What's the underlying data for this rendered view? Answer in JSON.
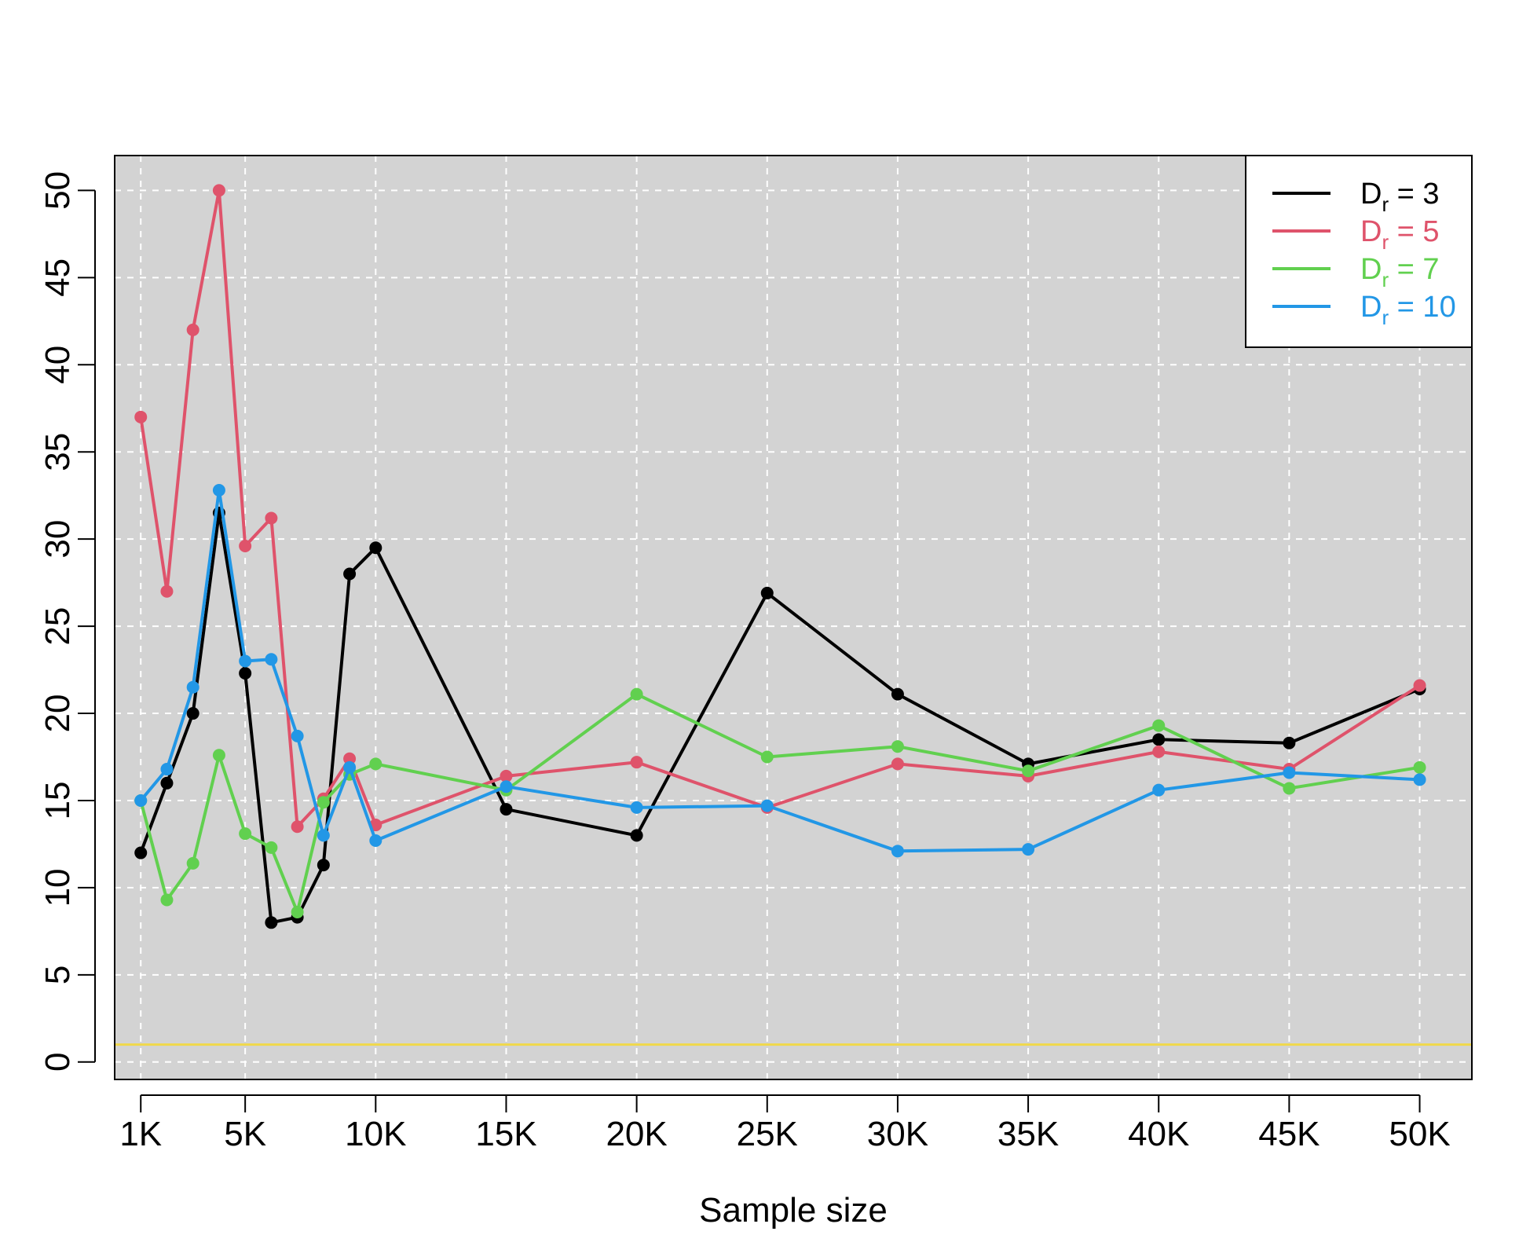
{
  "chart_data": {
    "type": "line",
    "title": "",
    "xlabel": "Sample size",
    "ylabel": "",
    "xlim": [
      0,
      52000
    ],
    "ylim": [
      -1,
      52
    ],
    "x_ticks": [
      {
        "value": 1000,
        "label": "1K"
      },
      {
        "value": 5000,
        "label": "5K"
      },
      {
        "value": 10000,
        "label": "10K"
      },
      {
        "value": 15000,
        "label": "15K"
      },
      {
        "value": 20000,
        "label": "20K"
      },
      {
        "value": 25000,
        "label": "25K"
      },
      {
        "value": 30000,
        "label": "30K"
      },
      {
        "value": 35000,
        "label": "35K"
      },
      {
        "value": 40000,
        "label": "40K"
      },
      {
        "value": 45000,
        "label": "45K"
      },
      {
        "value": 50000,
        "label": "50K"
      }
    ],
    "y_ticks": [
      0,
      5,
      10,
      15,
      20,
      25,
      30,
      35,
      40,
      45,
      50
    ],
    "y_tick_labels": [
      "0",
      "5",
      "10",
      "15",
      "20",
      "25",
      "30",
      "35",
      "40",
      "45",
      "50"
    ],
    "grid": true,
    "background": "#d3d3d3",
    "reference_line": {
      "y": 1,
      "color": "#f0d84a"
    },
    "legend": {
      "placement": "top-right"
    },
    "x": [
      1000,
      2000,
      3000,
      4000,
      5000,
      6000,
      7000,
      8000,
      9000,
      10000,
      15000,
      20000,
      25000,
      30000,
      35000,
      40000,
      45000,
      50000
    ],
    "series": [
      {
        "name_main": "D",
        "name_sub": "r",
        "name_rest": " = 3",
        "color": "#000000",
        "values": [
          12,
          16,
          20,
          31.5,
          22.3,
          8,
          8.3,
          11.3,
          28,
          29.5,
          14.5,
          13,
          26.9,
          21.1,
          17.1,
          18.5,
          18.3,
          21.4
        ]
      },
      {
        "name_main": "D",
        "name_sub": "r",
        "name_rest": " = 5",
        "color": "#df536b",
        "values": [
          37,
          27,
          42,
          50,
          29.6,
          31.2,
          13.5,
          15.1,
          17.4,
          13.6,
          16.4,
          17.2,
          14.6,
          17.1,
          16.4,
          17.8,
          16.8,
          21.6
        ]
      },
      {
        "name_main": "D",
        "name_sub": "r",
        "name_rest": " = 7",
        "color": "#61d04f",
        "values": [
          15,
          9.3,
          11.4,
          17.6,
          13.1,
          12.3,
          8.6,
          14.9,
          16.5,
          17.1,
          15.6,
          21.1,
          17.5,
          18.1,
          16.7,
          19.3,
          15.7,
          16.9
        ]
      },
      {
        "name_main": "D",
        "name_sub": "r",
        "name_rest": " = 10",
        "color": "#2297e6",
        "values": [
          15,
          16.8,
          21.5,
          32.8,
          23,
          23.1,
          18.7,
          13,
          16.9,
          12.7,
          15.8,
          14.6,
          14.7,
          12.1,
          12.2,
          15.6,
          16.6,
          16.2
        ]
      }
    ]
  }
}
